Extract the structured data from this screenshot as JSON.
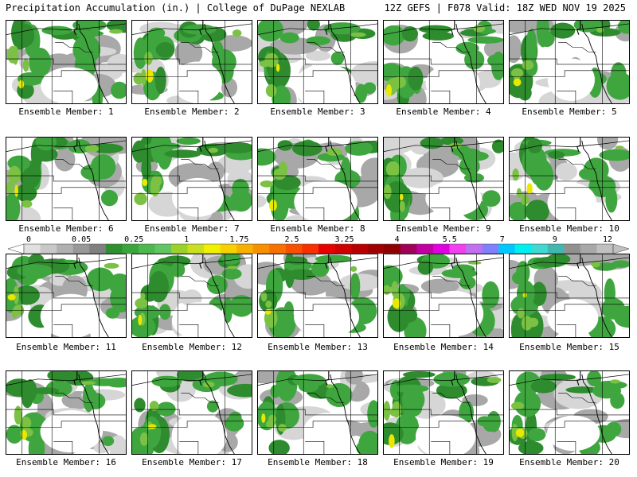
{
  "header": {
    "left": "Precipitation Accumulation (in.) | College of DuPage NEXLAB",
    "right": "12Z GEFS | F078 Valid: 18Z WED NOV 19 2025"
  },
  "members": [
    "Ensemble Member: 1",
    "Ensemble Member: 2",
    "Ensemble Member: 3",
    "Ensemble Member: 4",
    "Ensemble Member: 5",
    "Ensemble Member: 6",
    "Ensemble Member: 7",
    "Ensemble Member: 8",
    "Ensemble Member: 9",
    "Ensemble Member: 10",
    "Ensemble Member: 11",
    "Ensemble Member: 12",
    "Ensemble Member: 13",
    "Ensemble Member: 14",
    "Ensemble Member: 15",
    "Ensemble Member: 16",
    "Ensemble Member: 17",
    "Ensemble Member: 18",
    "Ensemble Member: 19",
    "Ensemble Member: 20"
  ],
  "colorbar": {
    "labels": [
      "0",
      "0.05",
      "0.25",
      "1",
      "1.75",
      "2.5",
      "3.25",
      "4",
      "5.5",
      "7",
      "9",
      "12"
    ],
    "colors": [
      "#e0e0e0",
      "#c8c8c8",
      "#b0b0b0",
      "#989898",
      "#808080",
      "#2f8f2f",
      "#3aa53a",
      "#4db84d",
      "#62c462",
      "#9bd22a",
      "#c8e020",
      "#f0f000",
      "#f6d000",
      "#f8b000",
      "#f89000",
      "#f87000",
      "#f85000",
      "#f83000",
      "#e80000",
      "#d00000",
      "#b80000",
      "#a00000",
      "#900000",
      "#a0005a",
      "#c000a0",
      "#e000e0",
      "#f040f0",
      "#c070f0",
      "#8080ff",
      "#00c8ff",
      "#00f0f0",
      "#40d8d0",
      "#40b8b0",
      "#909090",
      "#a8a8a8",
      "#c0c0c0"
    ]
  },
  "palette": {
    "dark_green": "#2e8b2e",
    "green": "#3fa63f",
    "light_green": "#7bc143",
    "yellow": "#e8e800",
    "light_gray": "#d6d6d6",
    "gray": "#a8a8a8",
    "dark_gray": "#888888",
    "border_line": "#000000"
  }
}
